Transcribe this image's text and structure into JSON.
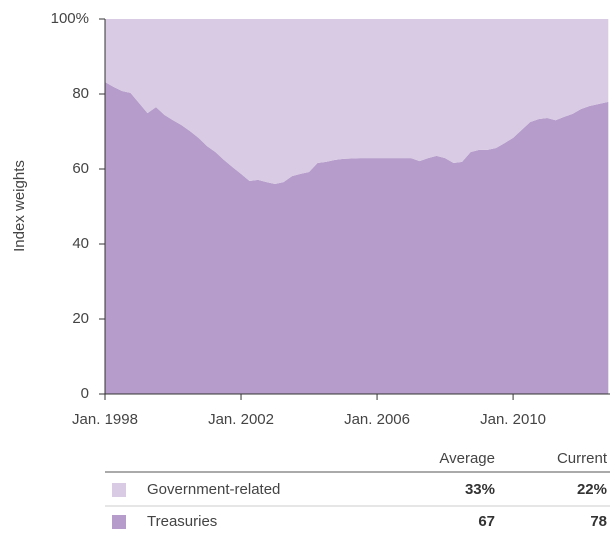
{
  "chart_data": {
    "type": "stacked_area",
    "y_label": "Index weights",
    "x": [
      1998,
      1998.25,
      1998.5,
      1998.75,
      1999,
      1999.25,
      1999.5,
      1999.75,
      2000,
      2000.25,
      2000.5,
      2000.75,
      2001,
      2001.25,
      2001.5,
      2001.75,
      2002,
      2002.25,
      2002.5,
      2002.75,
      2003,
      2003.25,
      2003.5,
      2003.75,
      2004,
      2004.25,
      2004.5,
      2004.75,
      2005,
      2005.5,
      2006,
      2006.5,
      2007,
      2007.25,
      2007.5,
      2007.75,
      2008,
      2008.25,
      2008.5,
      2008.75,
      2009,
      2009.25,
      2009.5,
      2009.75,
      2010,
      2010.25,
      2010.5,
      2010.75,
      2011,
      2011.25,
      2011.5,
      2011.75,
      2012,
      2012.25,
      2012.5,
      2012.8
    ],
    "series": [
      {
        "name": "Treasuries",
        "color": "#b59ccb",
        "values": [
          83.2,
          81.9,
          80.8,
          80.3,
          77.6,
          74.9,
          76.5,
          74.4,
          73,
          71.7,
          70.1,
          68.3,
          66.1,
          64.5,
          62.4,
          60.5,
          58.7,
          56.8,
          57.1,
          56.5,
          56,
          56.5,
          58.1,
          58.7,
          59.2,
          61.6,
          61.9,
          62.4,
          62.7,
          62.9,
          62.9,
          62.9,
          62.9,
          62.1,
          62.9,
          63.5,
          62.9,
          61.6,
          61.9,
          64.5,
          65.1,
          65.1,
          65.6,
          66.9,
          68.3,
          70.4,
          72.5,
          73.3,
          73.6,
          73,
          73.9,
          74.7,
          76,
          76.8,
          77.3,
          77.9
        ]
      },
      {
        "name": "Government-related",
        "color": "#d9cbe3",
        "values": [
          16.8,
          18.1,
          19.2,
          19.7,
          22.4,
          25.1,
          23.5,
          25.6,
          27,
          28.3,
          29.9,
          31.7,
          33.9,
          35.5,
          37.6,
          39.5,
          41.3,
          43.2,
          42.9,
          43.5,
          44,
          43.5,
          41.9,
          41.3,
          40.8,
          38.4,
          38.1,
          37.6,
          37.3,
          37.1,
          37.1,
          37.1,
          37.1,
          37.9,
          37.1,
          36.5,
          37.1,
          38.4,
          38.1,
          35.5,
          34.9,
          34.9,
          34.4,
          33.1,
          31.7,
          29.6,
          27.5,
          26.7,
          26.4,
          27,
          26.1,
          25.3,
          24,
          23.2,
          22.7,
          22.1
        ]
      }
    ],
    "xlim": [
      1998,
      2012.85
    ],
    "xticks": [
      {
        "value": 1998,
        "label": "Jan. 1998"
      },
      {
        "value": 2002,
        "label": "Jan. 2002"
      },
      {
        "value": 2006,
        "label": "Jan. 2006"
      },
      {
        "value": 2010,
        "label": "Jan. 2010"
      }
    ],
    "ylim": [
      0,
      100
    ],
    "yticks": [
      0,
      20,
      40,
      60,
      80,
      {
        "value": 100,
        "label": "100%"
      }
    ]
  },
  "table": {
    "columns": [
      "Average",
      "Current"
    ],
    "rows": [
      {
        "series": 1,
        "cells": [
          "33%",
          "22%"
        ]
      },
      {
        "series": 0,
        "cells": [
          "67",
          "78"
        ]
      }
    ]
  }
}
